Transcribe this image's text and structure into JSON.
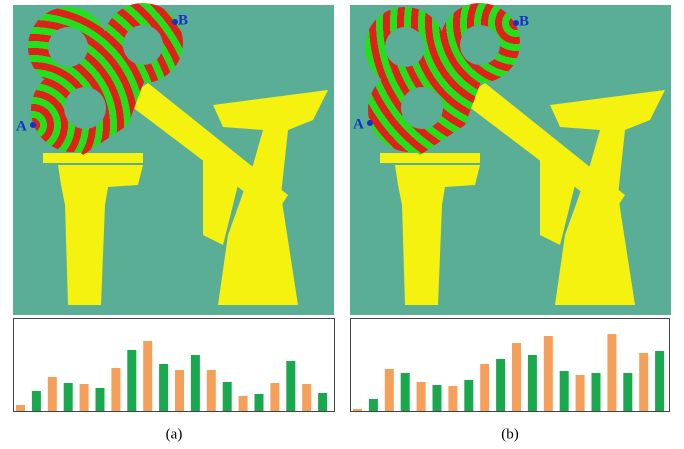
{
  "chart_data": [
    {
      "type": "bar",
      "caption": "(a)",
      "annotations": [
        "A",
        "B"
      ],
      "colors": [
        "#f5a05a",
        "#1aa84e"
      ],
      "values": [
        6,
        20,
        34,
        28,
        27,
        23,
        43,
        61,
        70,
        47,
        41,
        56,
        41,
        29,
        15,
        17,
        28,
        50,
        27,
        18
      ]
    },
    {
      "type": "bar",
      "caption": "(b)",
      "annotations": [
        "A",
        "B"
      ],
      "colors": [
        "#f5a05a",
        "#1aa84e"
      ],
      "values": [
        2,
        12,
        42,
        38,
        29,
        26,
        25,
        31,
        47,
        52,
        68,
        56,
        75,
        40,
        36,
        38,
        77,
        38,
        58,
        60
      ]
    }
  ]
}
